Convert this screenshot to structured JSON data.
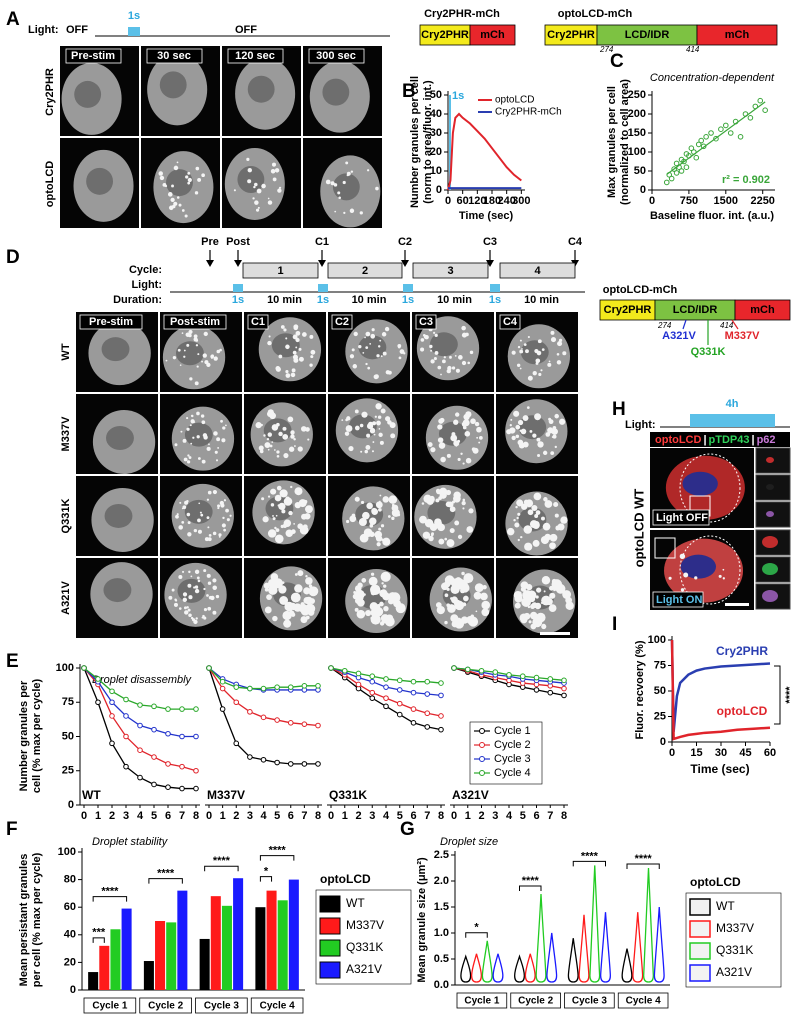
{
  "panel_letters": [
    "A",
    "B",
    "C",
    "D",
    "E",
    "F",
    "G",
    "H",
    "I"
  ],
  "panel_a": {
    "light_label": "Light:",
    "off1": "OFF",
    "pulse": "1s",
    "off2": "OFF",
    "columns": [
      "Pre-stim",
      "30 sec",
      "120 sec",
      "300 sec"
    ],
    "rows": [
      "Cry2PHR",
      "optoLCD"
    ]
  },
  "constructs": {
    "cry2": {
      "title": "Cry2PHR-mCh",
      "parts": [
        "Cry2PHR",
        "mCh"
      ]
    },
    "opto": {
      "title": "optoLCD-mCh",
      "parts": [
        "Cry2PHR",
        "LCD/IDR",
        "mCh"
      ],
      "start": "274",
      "end": "414"
    }
  },
  "panel_d": {
    "events": [
      "Pre",
      "Post",
      "C1",
      "C2",
      "C3",
      "C4"
    ],
    "row_titles": [
      "Cycle:",
      "Light:",
      "Duration:"
    ],
    "cycles": [
      "1",
      "2",
      "3",
      "4"
    ],
    "pulse": "1s",
    "interval": "10 min",
    "columns": [
      "Pre-stim",
      "Post-stim",
      "C1",
      "C2",
      "C3",
      "C4"
    ],
    "rows": [
      "WT",
      "M337V",
      "Q331K",
      "A321V"
    ],
    "construct": {
      "title": "optoLCD-mCh",
      "parts": [
        "Cry2PHR",
        "LCD/IDR",
        "mCh"
      ],
      "start": "274",
      "end": "414",
      "mutations": [
        "A321V",
        "Q331K",
        "M337V"
      ]
    }
  },
  "panel_h": {
    "light_label": "Light:",
    "duration": "4h",
    "stains": [
      "optoLCD",
      "pTDP43",
      "p62"
    ],
    "separator": "|",
    "row_label": "optoLCD WT",
    "conditions": [
      "Light OFF",
      "Light ON"
    ]
  },
  "chart_data": [
    {
      "type": "line",
      "ylabel": [
        "Number granules per cell",
        "(norm to area/fluor. int.)"
      ],
      "xlabel": "Time (sec)",
      "annotation": "1s",
      "x": [
        0,
        10,
        20,
        30,
        45,
        60,
        90,
        120,
        150,
        180,
        210,
        240,
        270,
        300
      ],
      "series": [
        {
          "name": "optoLCD",
          "color": "#e0242b",
          "values": [
            0,
            5,
            30,
            38,
            40,
            38,
            35,
            31,
            27,
            22,
            17,
            12,
            8,
            5
          ]
        },
        {
          "name": "Cry2PHR-mCh",
          "color": "#2a3eb1",
          "values": [
            1,
            1,
            1,
            1,
            1,
            1,
            1,
            1,
            1,
            1,
            1,
            1,
            1,
            1
          ]
        }
      ],
      "xlim": [
        0,
        315
      ],
      "ylim": [
        0,
        50
      ],
      "xticks": [
        0,
        60,
        120,
        180,
        240,
        300
      ],
      "yticks": [
        0,
        10,
        20,
        30,
        40,
        50
      ]
    },
    {
      "type": "scatter",
      "title": "Concentration-dependent",
      "ylabel": [
        "Max granules per cell",
        "(normalized to cell area)"
      ],
      "xlabel": "Baseline fluor. int. (a.u.)",
      "annotation": "r² = 0.902",
      "color": "#3aa63a",
      "x": [
        300,
        350,
        400,
        450,
        500,
        500,
        550,
        600,
        600,
        650,
        700,
        700,
        750,
        800,
        850,
        900,
        950,
        1000,
        1050,
        1100,
        1200,
        1300,
        1400,
        1500,
        1600,
        1700,
        1900,
        2000,
        2100,
        2200,
        2300,
        1800
      ],
      "values": [
        20,
        40,
        30,
        55,
        45,
        70,
        60,
        50,
        80,
        75,
        95,
        60,
        90,
        110,
        100,
        85,
        120,
        130,
        115,
        140,
        150,
        135,
        160,
        170,
        150,
        180,
        200,
        190,
        220,
        235,
        210,
        140
      ],
      "xlim": [
        0,
        2500
      ],
      "ylim": [
        0,
        250
      ],
      "xticks": [
        0,
        750,
        1500,
        2250
      ],
      "yticks": [
        0,
        50,
        100,
        150,
        200,
        250
      ]
    },
    {
      "type": "line",
      "title": "Droplet disassembly",
      "ylabel": [
        "Number granules per",
        "cell (% max per cycle)"
      ],
      "x": [
        0,
        1,
        2,
        3,
        4,
        5,
        6,
        7,
        8
      ],
      "xlim": [
        0,
        8
      ],
      "ylim": [
        0,
        100
      ],
      "xticks": [
        0,
        1,
        2,
        3,
        4,
        5,
        6,
        7,
        8
      ],
      "yticks": [
        0,
        25,
        50,
        75,
        100
      ],
      "series": [
        {
          "name": "Cycle 1",
          "color": "#000000"
        },
        {
          "name": "Cycle 2",
          "color": "#e0242b"
        },
        {
          "name": "Cycle 3",
          "color": "#2233cc"
        },
        {
          "name": "Cycle 4",
          "color": "#2aa82a"
        }
      ],
      "panels": [
        {
          "label": "WT",
          "values": [
            [
              100,
              75,
              45,
              28,
              20,
              15,
              13,
              12,
              12
            ],
            [
              100,
              88,
              65,
              50,
              40,
              35,
              30,
              28,
              25
            ],
            [
              100,
              90,
              75,
              65,
              58,
              55,
              52,
              50,
              50
            ],
            [
              100,
              92,
              83,
              77,
              73,
              72,
              70,
              70,
              70
            ]
          ]
        },
        {
          "label": "M337V",
          "values": [
            [
              100,
              70,
              45,
              35,
              33,
              31,
              30,
              30,
              30
            ],
            [
              100,
              85,
              75,
              68,
              64,
              62,
              60,
              59,
              58
            ],
            [
              100,
              92,
              88,
              85,
              84,
              84,
              84,
              84,
              84
            ],
            [
              100,
              90,
              86,
              85,
              85,
              86,
              86,
              87,
              87
            ]
          ]
        },
        {
          "label": "Q331K",
          "values": [
            [
              100,
              93,
              85,
              78,
              72,
              66,
              60,
              57,
              55
            ],
            [
              100,
              95,
              88,
              82,
              78,
              74,
              70,
              67,
              65
            ],
            [
              100,
              97,
              93,
              90,
              86,
              84,
              82,
              81,
              80
            ],
            [
              100,
              98,
              96,
              94,
              92,
              91,
              90,
              90,
              89
            ]
          ]
        },
        {
          "label": "A321V",
          "values": [
            [
              100,
              97,
              94,
              91,
              88,
              86,
              84,
              82,
              80
            ],
            [
              100,
              98,
              95,
              93,
              91,
              89,
              88,
              87,
              85
            ],
            [
              100,
              99,
              97,
              95,
              94,
              92,
              91,
              90,
              89
            ],
            [
              100,
              99,
              98,
              97,
              95,
              94,
              93,
              92,
              91
            ]
          ]
        }
      ]
    },
    {
      "type": "bar",
      "title": "Droplet stability",
      "ylabel": [
        "Mean persistant granules",
        "per cell (% max per cycle)"
      ],
      "legend_title": "optoLCD",
      "categories": [
        "Cycle 1",
        "Cycle 2",
        "Cycle 3",
        "Cycle 4"
      ],
      "ylim": [
        0,
        100
      ],
      "yticks": [
        0,
        20,
        40,
        60,
        80,
        100
      ],
      "series": [
        {
          "name": "WT",
          "color": "#000000",
          "values": [
            13,
            21,
            37,
            60
          ]
        },
        {
          "name": "M337V",
          "color": "#ff1a1a",
          "values": [
            32,
            50,
            68,
            72
          ]
        },
        {
          "name": "Q331K",
          "color": "#22cc22",
          "values": [
            44,
            49,
            61,
            65
          ]
        },
        {
          "name": "A321V",
          "color": "#1a1aff",
          "values": [
            59,
            72,
            81,
            80
          ]
        }
      ],
      "annotations": [
        "***",
        "****",
        "****",
        "****",
        "*",
        "****"
      ]
    },
    {
      "type": "violin",
      "title": "Droplet size",
      "ylabel": "Mean granule size (μm²)",
      "legend_title": "optoLCD",
      "categories": [
        "Cycle 1",
        "Cycle 2",
        "Cycle 3",
        "Cycle 4"
      ],
      "ylim": [
        0,
        2.5
      ],
      "yticks": [
        {
          "value": 0,
          "label": "0.0"
        },
        0.5,
        {
          "value": 1,
          "label": "1.0"
        },
        1.5,
        {
          "value": 2,
          "label": "2.0"
        },
        2.5
      ],
      "series": [
        {
          "name": "WT",
          "color": "#000000",
          "values": [
            0.55,
            0.55,
            0.9,
            0.7
          ]
        },
        {
          "name": "M337V",
          "color": "#ff1a1a",
          "values": [
            0.6,
            0.6,
            1.35,
            1.4
          ]
        },
        {
          "name": "Q331K",
          "color": "#22cc22",
          "values": [
            0.85,
            1.75,
            2.3,
            2.25
          ]
        },
        {
          "name": "A321V",
          "color": "#1a1aff",
          "values": [
            0.6,
            1.0,
            1.4,
            1.5
          ]
        }
      ],
      "annotations": [
        "*",
        "****",
        "****",
        "****"
      ]
    },
    {
      "type": "line",
      "ylabel": "Fluor. recvoery (%)",
      "xlabel": "Time (sec)",
      "annotation": "****",
      "x": [
        0,
        1,
        3,
        5,
        10,
        15,
        20,
        30,
        40,
        50,
        60
      ],
      "xlim": [
        0,
        60
      ],
      "ylim": [
        0,
        100
      ],
      "xticks": [
        0,
        15,
        30,
        45,
        60
      ],
      "yticks": [
        0,
        25,
        50,
        75,
        100
      ],
      "series": [
        {
          "name": "Cry2PHR",
          "color": "#2a3eb1",
          "values": [
            100,
            10,
            45,
            58,
            66,
            70,
            72,
            74,
            75,
            76,
            77
          ]
        },
        {
          "name": "optoLCD",
          "color": "#e0242b",
          "values": [
            100,
            3,
            4,
            5,
            7,
            8,
            9,
            10,
            12,
            13,
            14
          ]
        }
      ]
    }
  ]
}
